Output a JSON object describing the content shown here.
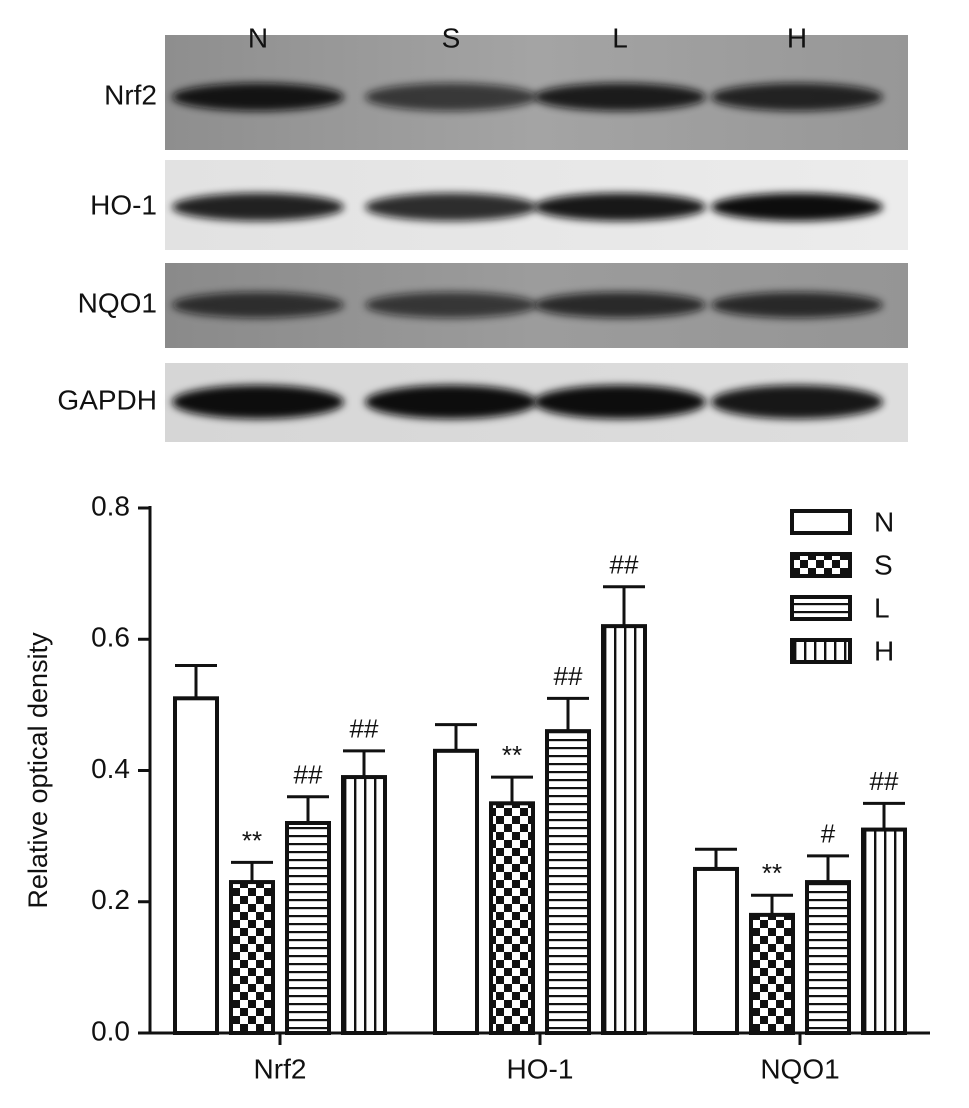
{
  "blot": {
    "lanes": [
      "N",
      "S",
      "L",
      "H"
    ],
    "rows": [
      "Nrf2",
      "HO-1",
      "NQO1",
      "GAPDH"
    ]
  },
  "chart_data": {
    "type": "bar",
    "ylabel": "Relative optical density",
    "categories": [
      "Nrf2",
      "HO-1",
      "NQO1"
    ],
    "series": [
      {
        "name": "N",
        "color": "#ffffff",
        "pattern": "none",
        "values": [
          0.51,
          0.43,
          0.25
        ],
        "errors": [
          0.05,
          0.04,
          0.03
        ],
        "annotations": [
          null,
          null,
          null
        ]
      },
      {
        "name": "S",
        "color": "#ffffff",
        "pattern": "checker",
        "values": [
          0.23,
          0.35,
          0.18
        ],
        "errors": [
          0.03,
          0.04,
          0.03
        ],
        "annotations": [
          "**",
          "**",
          "**"
        ]
      },
      {
        "name": "L",
        "color": "#ffffff",
        "pattern": "horizontal",
        "values": [
          0.32,
          0.46,
          0.23
        ],
        "errors": [
          0.04,
          0.05,
          0.04
        ],
        "annotations": [
          "##",
          "##",
          "#"
        ]
      },
      {
        "name": "H",
        "color": "#ffffff",
        "pattern": "vertical",
        "values": [
          0.39,
          0.62,
          0.31
        ],
        "errors": [
          0.04,
          0.06,
          0.04
        ],
        "annotations": [
          "##",
          "##",
          "##"
        ]
      }
    ],
    "ylim": [
      0,
      0.8
    ],
    "yticks": [
      {
        "value": 0,
        "label": "0.0"
      },
      {
        "value": 0.2,
        "label": "0.2"
      },
      {
        "value": 0.4,
        "label": "0.4"
      },
      {
        "value": 0.6,
        "label": "0.6"
      },
      {
        "value": 0.8,
        "label": "0.8"
      }
    ],
    "legend": "upper right",
    "grid": false
  }
}
